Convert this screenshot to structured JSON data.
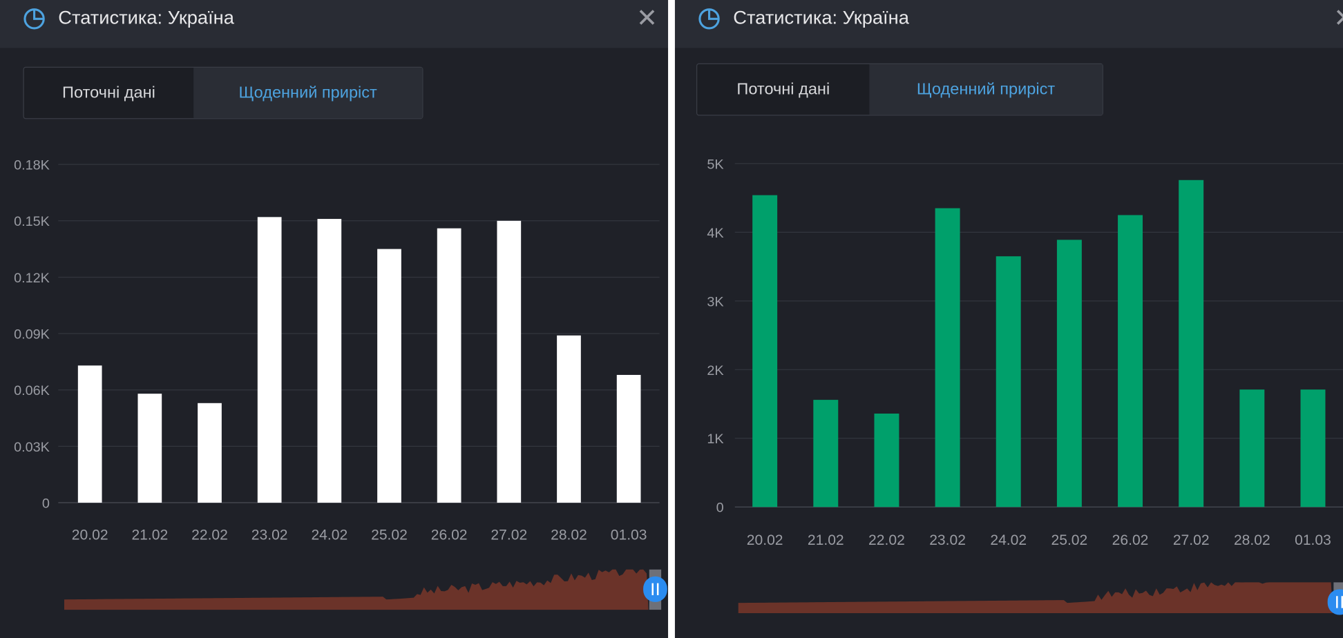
{
  "panels": [
    {
      "title": "Статистика: Україна",
      "tabs": [
        "Поточні дані",
        "Щоденний приріст"
      ],
      "active_tab": 1
    },
    {
      "title": "Статистика: Україна",
      "tabs": [
        "Поточні дані",
        "Щоденний приріст"
      ],
      "active_tab": 1
    }
  ],
  "chart_data": [
    {
      "type": "bar",
      "categories": [
        "20.02",
        "21.02",
        "22.02",
        "23.02",
        "24.02",
        "25.02",
        "26.02",
        "27.02",
        "28.02",
        "01.03"
      ],
      "values": [
        73,
        58,
        53,
        152,
        151,
        135,
        146,
        150,
        89,
        68
      ],
      "ylim": [
        0,
        180
      ],
      "yticks": [
        0,
        30,
        60,
        90,
        120,
        150,
        180
      ],
      "ytick_labels": [
        "0",
        "0.03K",
        "0.06K",
        "0.09K",
        "0.12K",
        "0.15K",
        "0.18K"
      ],
      "color": "#ffffff",
      "grid": true
    },
    {
      "type": "bar",
      "categories": [
        "20.02",
        "21.02",
        "22.02",
        "23.02",
        "24.02",
        "25.02",
        "26.02",
        "27.02",
        "28.02",
        "01.03"
      ],
      "values": [
        4540,
        1560,
        1360,
        4350,
        3650,
        3890,
        4250,
        4760,
        1710,
        1710
      ],
      "ylim": [
        0,
        5000
      ],
      "yticks": [
        0,
        1000,
        2000,
        3000,
        4000,
        5000
      ],
      "ytick_labels": [
        "0",
        "1K",
        "2K",
        "3K",
        "4K",
        "5K"
      ],
      "color": "#00a06b",
      "grid": true
    }
  ],
  "colors": {
    "accent": "#4da3e0",
    "navigator": "#6b3329",
    "handle": "#2b8cf0"
  }
}
